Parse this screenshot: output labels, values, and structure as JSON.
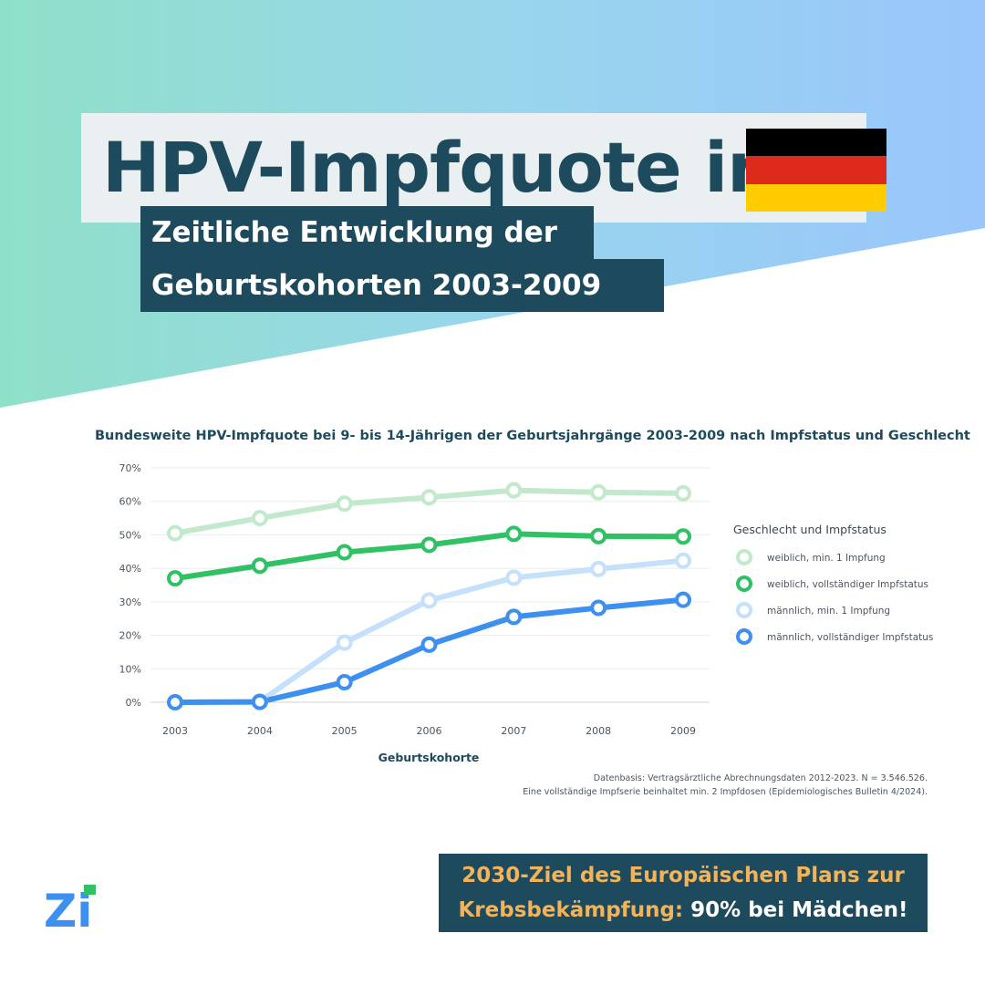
{
  "header": {
    "title": "HPV-Impfquote in",
    "subtitle_line1": "Zeitliche Entwicklung der",
    "subtitle_line2": "Geburtskohorten 2003-2009",
    "flag_colors": [
      "#000000",
      "#dd2a1b",
      "#ffcc00"
    ]
  },
  "colors": {
    "dark_teal": "#1d4a5c",
    "accent_orange": "#f2b35a",
    "gradient_left": "#8fe0c8",
    "gradient_right": "#99c6fb"
  },
  "chart_data": {
    "type": "line",
    "title": "Bundesweite HPV-Impfquote bei 9- bis 14-Jährigen der Geburtsjahrgänge 2003-2009 nach Impfstatus und Geschlecht",
    "xlabel": "Geburtskohorte",
    "ylabel": "",
    "categories": [
      "2003",
      "2004",
      "2005",
      "2006",
      "2007",
      "2008",
      "2009"
    ],
    "y_ticks": [
      "0%",
      "10%",
      "20%",
      "30%",
      "40%",
      "50%",
      "60%",
      "70%"
    ],
    "ylim": [
      0,
      70
    ],
    "grid": true,
    "legend_title": "Geschlecht und Impfstatus",
    "legend_position": "right",
    "series": [
      {
        "name": "weiblich, min. 1 Impfung",
        "color": "#c3e9cc",
        "values": [
          50.5,
          55,
          59.3,
          61.2,
          63.3,
          62.7,
          62.4
        ]
      },
      {
        "name": "weiblich, vollständiger Impfstatus",
        "color": "#2fc164",
        "values": [
          37,
          40.8,
          44.8,
          47,
          50.3,
          49.6,
          49.5
        ]
      },
      {
        "name": "männlich, min. 1 Impfung",
        "color": "#c4e0fb",
        "values": [
          0,
          0.2,
          17.8,
          30.4,
          37.2,
          39.8,
          42.3
        ]
      },
      {
        "name": "männlich, vollständiger Impfstatus",
        "color": "#3d8ff0",
        "values": [
          0,
          0.1,
          6,
          17.2,
          25.5,
          28.2,
          30.6
        ]
      }
    ]
  },
  "source": {
    "line1": "Datenbasis: Vertragsärztliche Abrechnungsdaten 2012-2023. N = 3.546.526.",
    "line2": "Eine vollständige Impfserie beinhaltet min. 2 Impfdosen (Epidemiologisches Bulletin 4/2024)."
  },
  "goal": {
    "line1": "2030-Ziel des Europäischen Plans zur",
    "line2_highlight": "Krebsbekämpfung:",
    "line2_rest": " 90% bei Mädchen!"
  },
  "logo": {
    "text": "Zi",
    "color": "#3d8ff0",
    "dot_color": "#2fc164"
  }
}
